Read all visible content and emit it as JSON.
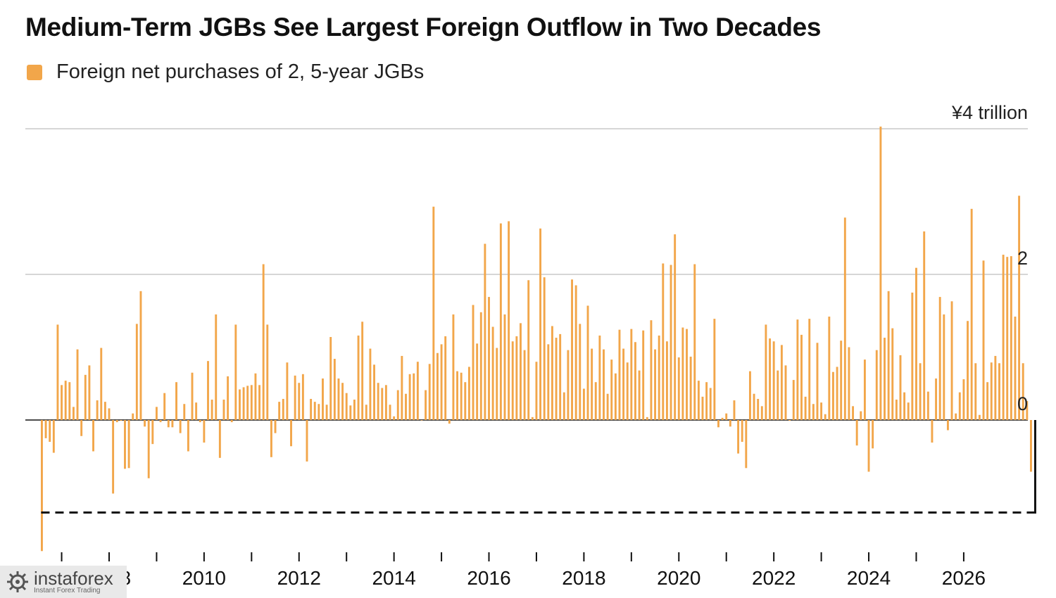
{
  "title": "Medium-Term JGBs See Largest Foreign Outflow in Two Decades",
  "legend": {
    "label": "Foreign net purchases of 2, 5-year JGBs",
    "color": "#f2a64a"
  },
  "watermark": {
    "name": "instaforex",
    "tagline": "Instant Forex Trading",
    "icon": "instaforex-logo-icon"
  },
  "chart_data": {
    "type": "bar",
    "frequency": "monthly",
    "unit": "¥ trillion",
    "x_start": "2006-08",
    "ylim": [
      -1.9,
      4.1
    ],
    "yticks": [
      {
        "value": 4,
        "label": "¥4 trillion"
      },
      {
        "value": 2,
        "label": "2"
      },
      {
        "value": 0,
        "label": "0"
      }
    ],
    "xticks": [
      "2008",
      "2010",
      "2012",
      "2014",
      "2016",
      "2018",
      "2020",
      "2022",
      "2024",
      "2026"
    ],
    "grid": true,
    "reference_line": {
      "value": -1.27,
      "style": "dashed",
      "label": ""
    },
    "series": [
      {
        "color": "#f2a64a",
        "values": [
          -1.8,
          -0.25,
          -0.3,
          -0.45,
          1.31,
          0.48,
          0.54,
          0.52,
          0.18,
          0.97,
          -0.22,
          0.62,
          0.75,
          -0.43,
          0.27,
          0.99,
          0.25,
          0.16,
          -1.01,
          -0.03,
          -0.01,
          -0.67,
          -0.66,
          0.09,
          1.32,
          1.77,
          -0.09,
          -0.8,
          -0.33,
          0.18,
          -0.03,
          0.37,
          -0.1,
          -0.1,
          0.52,
          -0.18,
          0.22,
          -0.43,
          0.65,
          0.24,
          -0.03,
          -0.31,
          0.81,
          0.28,
          1.45,
          -0.52,
          0.28,
          0.6,
          -0.03,
          1.31,
          0.42,
          0.45,
          0.47,
          0.48,
          0.64,
          0.48,
          2.14,
          1.31,
          -0.51,
          -0.18,
          0.25,
          0.29,
          0.79,
          -0.36,
          0.61,
          0.51,
          0.63,
          -0.57,
          0.29,
          0.25,
          0.22,
          0.57,
          0.21,
          1.14,
          0.84,
          0.57,
          0.51,
          0.37,
          0.2,
          0.28,
          1.16,
          1.35,
          0.21,
          0.98,
          0.76,
          0.51,
          0.44,
          0.48,
          0.21,
          0.05,
          0.41,
          0.88,
          0.36,
          0.63,
          0.64,
          0.8,
          0.0,
          0.41,
          0.77,
          2.93,
          0.92,
          1.04,
          1.15,
          -0.05,
          1.45,
          0.67,
          0.65,
          0.52,
          0.73,
          1.58,
          1.05,
          1.48,
          2.42,
          1.69,
          1.28,
          0.99,
          2.7,
          1.45,
          2.73,
          1.08,
          1.15,
          1.33,
          0.96,
          1.92,
          0.04,
          0.8,
          2.63,
          1.96,
          1.04,
          1.29,
          1.13,
          1.18,
          0.38,
          0.96,
          1.93,
          1.85,
          1.32,
          0.43,
          1.57,
          0.98,
          0.52,
          1.16,
          0.97,
          0.36,
          0.83,
          0.64,
          1.24,
          0.98,
          0.79,
          1.25,
          1.07,
          0.68,
          1.23,
          0.04,
          1.37,
          0.97,
          1.16,
          2.15,
          1.08,
          2.13,
          2.55,
          0.86,
          1.27,
          1.25,
          0.87,
          2.14,
          0.54,
          0.32,
          0.52,
          0.44,
          1.39,
          -0.1,
          0.03,
          0.09,
          -0.09,
          0.27,
          -0.46,
          -0.3,
          -0.66,
          0.67,
          0.36,
          0.29,
          0.19,
          1.31,
          1.12,
          1.08,
          0.68,
          1.03,
          0.75,
          -0.01,
          0.55,
          1.38,
          1.17,
          0.32,
          1.39,
          0.22,
          1.06,
          0.24,
          0.08,
          1.42,
          0.66,
          0.73,
          1.09,
          2.78,
          1.0,
          0.19,
          -0.35,
          0.12,
          0.83,
          -0.71,
          -0.39,
          0.96,
          4.03,
          1.13,
          1.77,
          1.26,
          0.28,
          0.89,
          0.38,
          0.24,
          1.75,
          2.09,
          0.78,
          2.59,
          0.39,
          -0.31,
          0.57,
          1.69,
          1.45,
          -0.14,
          1.63,
          0.09,
          0.38,
          0.56,
          1.36,
          2.9,
          0.78,
          0.07,
          2.19,
          0.52,
          0.79,
          0.88,
          0.78,
          2.27,
          2.24,
          2.25,
          1.42,
          3.08,
          0.78,
          0.26,
          -0.71
        ]
      }
    ]
  }
}
